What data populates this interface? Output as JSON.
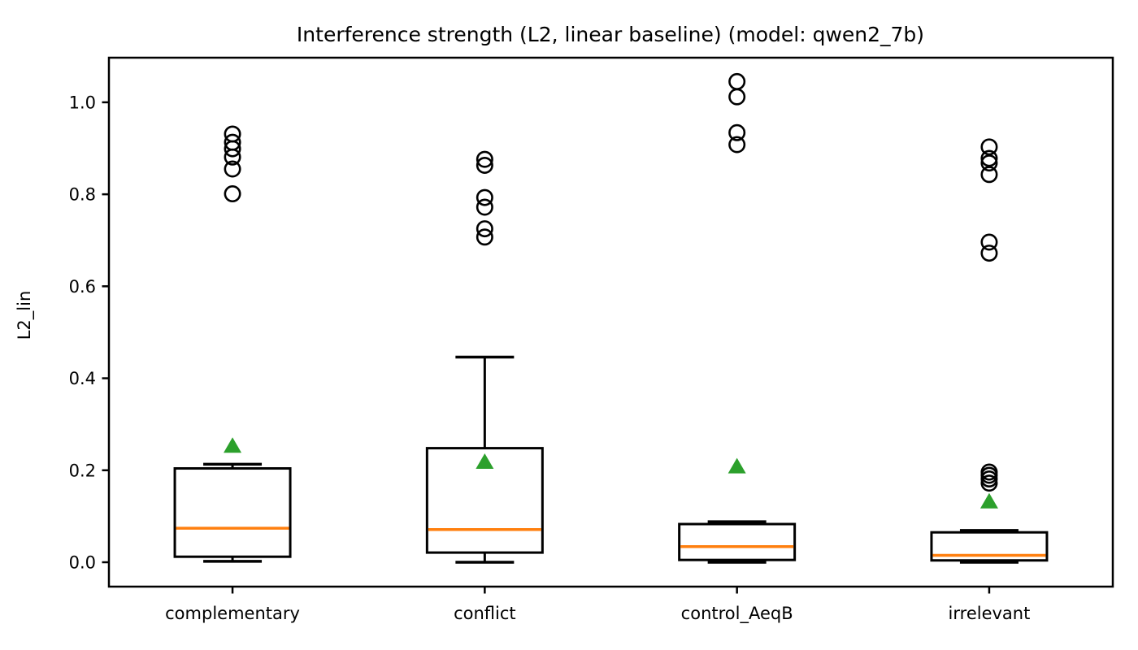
{
  "chart_data": {
    "type": "box",
    "title": "Interference strength (L2, linear baseline) (model: qwen2_7b)",
    "ylabel": "L2_lin",
    "xlabel": "",
    "categories": [
      "complementary",
      "conflict",
      "control_AeqB",
      "irrelevant"
    ],
    "ylim": [
      -0.053,
      1.097
    ],
    "yticks": [
      0.0,
      0.2,
      0.4,
      0.6,
      0.8,
      1.0
    ],
    "grid": false,
    "legend": null,
    "groups": [
      {
        "label": "complementary",
        "whislo": 0.002,
        "q1": 0.012,
        "med": 0.074,
        "q3": 0.204,
        "whishi": 0.213,
        "mean": 0.254,
        "fliers": [
          0.801,
          0.855,
          0.881,
          0.899,
          0.913,
          0.931
        ]
      },
      {
        "label": "conflict",
        "whislo": 0.0,
        "q1": 0.021,
        "med": 0.071,
        "q3": 0.248,
        "whishi": 0.446,
        "mean": 0.219,
        "fliers": [
          0.707,
          0.725,
          0.772,
          0.793,
          0.863,
          0.876
        ]
      },
      {
        "label": "control_AeqB",
        "whislo": 0.0,
        "q1": 0.005,
        "med": 0.034,
        "q3": 0.083,
        "whishi": 0.088,
        "mean": 0.209,
        "fliers": [
          0.908,
          0.934,
          1.012,
          1.045
        ]
      },
      {
        "label": "irrelevant",
        "whislo": 0.0,
        "q1": 0.004,
        "med": 0.015,
        "q3": 0.065,
        "whishi": 0.069,
        "mean": 0.133,
        "fliers": [
          0.172,
          0.181,
          0.189,
          0.196,
          0.672,
          0.696,
          0.843,
          0.868,
          0.878,
          0.903
        ]
      }
    ],
    "colors": {
      "box": "#000000",
      "median": "#ff7f0e",
      "mean": "#2ca02c",
      "flier": "#000000",
      "axis": "#000000",
      "background": "#ffffff"
    }
  }
}
